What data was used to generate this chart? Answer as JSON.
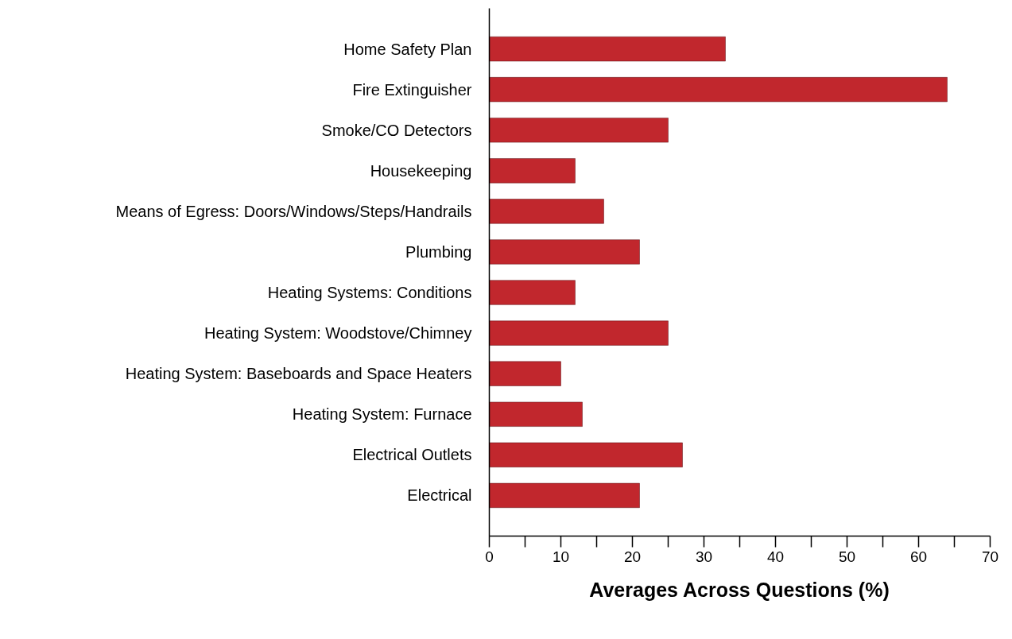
{
  "chart_data": {
    "type": "bar",
    "orientation": "horizontal",
    "xlabel": "Averages Across Questions (%)",
    "categories": [
      "Home Safety Plan",
      "Fire Extinguisher",
      "Smoke/CO Detectors",
      "Housekeeping",
      "Means of Egress: Doors/Windows/Steps/Handrails",
      "Plumbing",
      "Heating Systems: Conditions",
      "Heating System: Woodstove/Chimney",
      "Heating System: Baseboards and Space Heaters",
      "Heating System: Furnace",
      "Electrical Outlets",
      "Electrical"
    ],
    "values": [
      33,
      64,
      25,
      12,
      16,
      21,
      12,
      25,
      10,
      13,
      27,
      21
    ],
    "color": "#c1272d",
    "xlim": [
      0,
      70
    ],
    "xticks": [
      0,
      {
        "value": 5,
        "label": null
      },
      10,
      {
        "value": 15,
        "label": null
      },
      20,
      {
        "value": 25,
        "label": null
      },
      30,
      {
        "value": 35,
        "label": null
      },
      40,
      {
        "value": 45,
        "label": null
      },
      50,
      {
        "value": 55,
        "label": null
      },
      60,
      {
        "value": 65,
        "label": null
      },
      70
    ],
    "grid": false
  }
}
